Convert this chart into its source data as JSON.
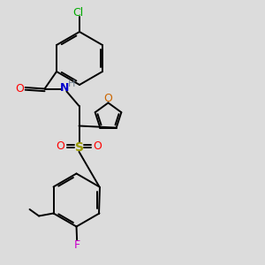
{
  "background_color": "#dcdcdc",
  "figsize": [
    3.0,
    3.0
  ],
  "dpi": 100,
  "colors": {
    "black": "#000000",
    "Cl": "#00aa00",
    "O": "#ff0000",
    "N": "#0000cc",
    "H": "#708090",
    "O_furan": "#cc6600",
    "S": "#999900",
    "F": "#cc00cc"
  }
}
